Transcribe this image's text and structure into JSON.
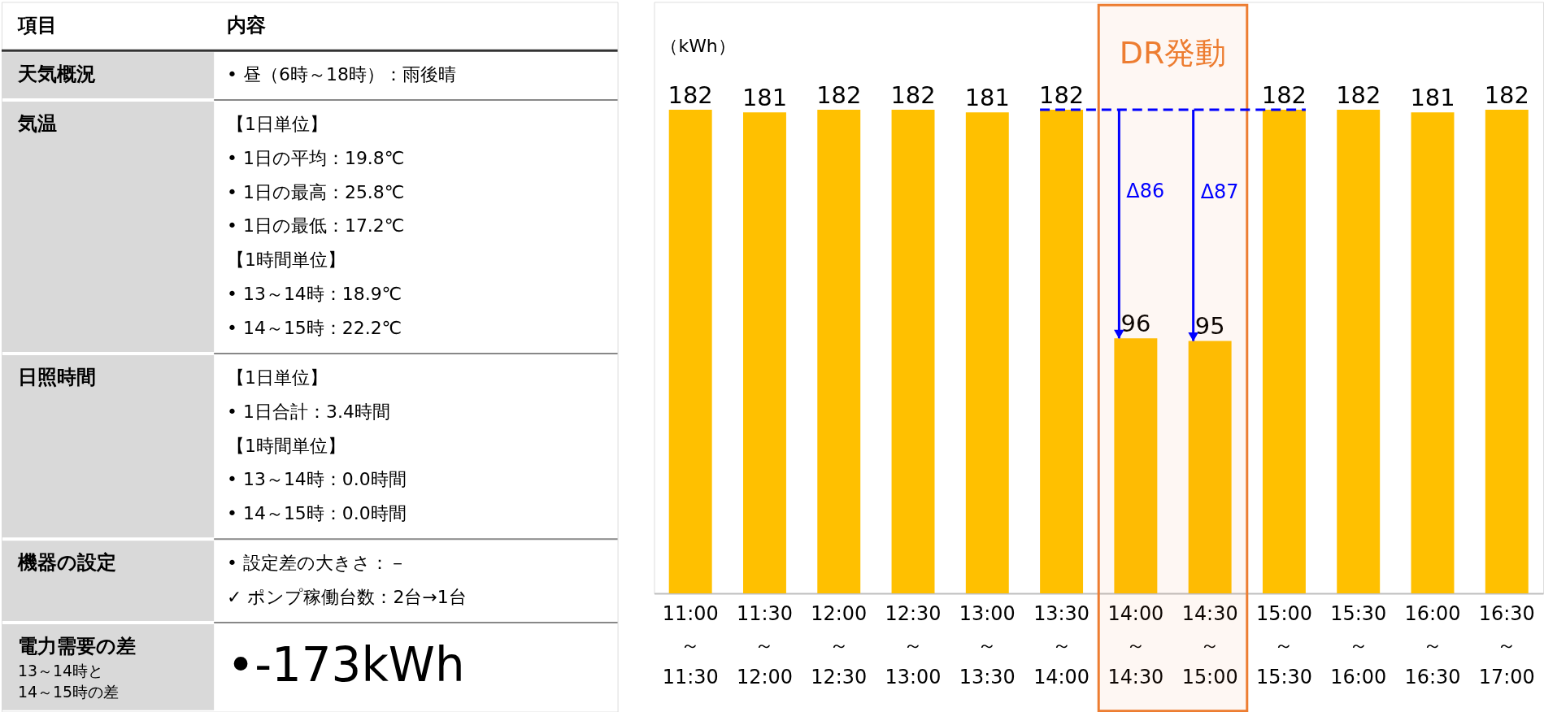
{
  "chart_data": [
    {
      "type": "other",
      "categories": [
        "項目",
        "内容"
      ],
      "y_categories": [
        "天気概況",
        "気温",
        "日照時間",
        "機器の設定",
        "電力需要の差\n13～14時と\n14～15時の差"
      ],
      "cell_labels": [
        [
          "• 昼（6時～18時）：雨後晴"
        ],
        [
          "【1日単位】",
          "• 1日の平均：19.8℃",
          "• 1日の最高：25.8℃",
          "• 1日の最低：17.2℃",
          "【1時間単位】",
          "• 13～14時：18.9℃",
          "• 14～15時：22.2℃"
        ],
        [
          "【1日単位】",
          "• 1日合計：3.4時間",
          "【1時間単位】",
          "• 13～14時：0.0時間",
          "• 14～15時：0.0時間"
        ],
        [
          "• 設定差の大きさ：－",
          "　　✓ ポンプ稼働台数：2台→1台"
        ],
        [
          "•-173kWh"
        ]
      ]
    },
    {
      "type": "bar",
      "ylabel": "（kWh）",
      "categories": [
        "11:00\n～\n11:30",
        "11:30\n～\n12:00",
        "12:00\n～\n12:30",
        "12:30\n～\n13:00",
        "13:00\n～\n13:30",
        "13:30\n～\n14:00",
        "14:00\n～\n14:30",
        "14:30\n～\n15:00",
        "15:00\n～\n15:30",
        "15:30\n～\n16:00",
        "16:00\n～\n16:30",
        "16:30\n～\n17:00"
      ],
      "values": [
        182,
        181,
        182,
        182,
        181,
        182,
        96,
        95,
        182,
        182,
        181,
        182
      ],
      "color": "#ffc000",
      "data_labels": true,
      "grid": false,
      "legend": false,
      "bands": [
        {
          "axis": "x",
          "from": "14:00\n～\n14:30",
          "to": "14:30\n～\n15:00",
          "label": "DR発動",
          "color": "#ed7d31"
        }
      ],
      "ref_lines": [
        {
          "axis": "y",
          "value": 182,
          "color": "#0000ff",
          "line_style": "dashed"
        }
      ],
      "annotations": [
        "Δ86",
        "Δ87"
      ]
    }
  ]
}
